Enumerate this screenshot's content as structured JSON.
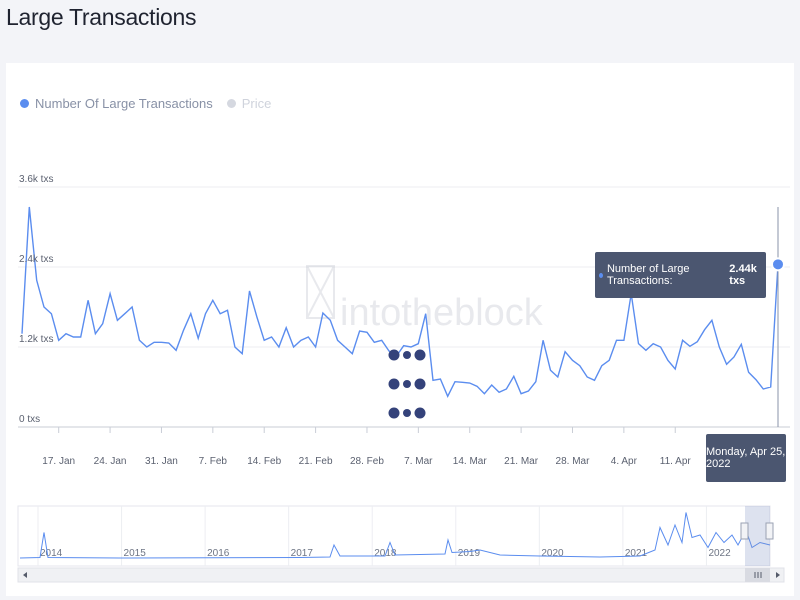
{
  "page": {
    "title": "Large Transactions"
  },
  "legend": {
    "items": [
      {
        "label": "Number Of Large Transactions",
        "color": "#5b8def",
        "active": true
      },
      {
        "label": "Price",
        "color": "#d5d8e0",
        "active": false
      }
    ]
  },
  "watermark": {
    "text": "intotheblock"
  },
  "tooltip": {
    "series_label": "Number of Large Transactions:",
    "value_label": "2.44k txs",
    "date_label": "Monday, Apr 25, 2022"
  },
  "chart_data": {
    "type": "line",
    "series": [
      {
        "name": "Number Of Large Transactions",
        "color": "#5b8def",
        "x": [
          "2022-01-12",
          "2022-01-13",
          "2022-01-14",
          "2022-01-15",
          "2022-01-16",
          "2022-01-17",
          "2022-01-18",
          "2022-01-19",
          "2022-01-20",
          "2022-01-21",
          "2022-01-22",
          "2022-01-23",
          "2022-01-24",
          "2022-01-25",
          "2022-01-26",
          "2022-01-27",
          "2022-01-28",
          "2022-01-29",
          "2022-01-30",
          "2022-01-31",
          "2022-02-01",
          "2022-02-02",
          "2022-02-03",
          "2022-02-04",
          "2022-02-05",
          "2022-02-06",
          "2022-02-07",
          "2022-02-08",
          "2022-02-09",
          "2022-02-10",
          "2022-02-11",
          "2022-02-12",
          "2022-02-13",
          "2022-02-14",
          "2022-02-15",
          "2022-02-16",
          "2022-02-17",
          "2022-02-18",
          "2022-02-19",
          "2022-02-20",
          "2022-02-21",
          "2022-02-22",
          "2022-02-23",
          "2022-02-24",
          "2022-02-25",
          "2022-02-26",
          "2022-02-27",
          "2022-02-28",
          "2022-03-01",
          "2022-03-02",
          "2022-03-03",
          "2022-03-04",
          "2022-03-05",
          "2022-03-06",
          "2022-03-07",
          "2022-03-08",
          "2022-03-09",
          "2022-03-10",
          "2022-03-11",
          "2022-03-12",
          "2022-03-13",
          "2022-03-14",
          "2022-03-15",
          "2022-03-16",
          "2022-03-17",
          "2022-03-18",
          "2022-03-19",
          "2022-03-20",
          "2022-03-21",
          "2022-03-22",
          "2022-03-23",
          "2022-03-24",
          "2022-03-25",
          "2022-03-26",
          "2022-03-27",
          "2022-03-28",
          "2022-03-29",
          "2022-03-30",
          "2022-03-31",
          "2022-04-01",
          "2022-04-02",
          "2022-04-03",
          "2022-04-04",
          "2022-04-05",
          "2022-04-06",
          "2022-04-07",
          "2022-04-08",
          "2022-04-09",
          "2022-04-10",
          "2022-04-11",
          "2022-04-12",
          "2022-04-13",
          "2022-04-14",
          "2022-04-15",
          "2022-04-16",
          "2022-04-17",
          "2022-04-18",
          "2022-04-19",
          "2022-04-20",
          "2022-04-21",
          "2022-04-22",
          "2022-04-23",
          "2022-04-24",
          "2022-04-25"
        ],
        "values": [
          1400,
          3300,
          2200,
          1800,
          1700,
          1300,
          1400,
          1350,
          1350,
          1900,
          1400,
          1550,
          2000,
          1600,
          1700,
          1800,
          1300,
          1200,
          1270,
          1270,
          1260,
          1150,
          1450,
          1700,
          1330,
          1700,
          1900,
          1700,
          1750,
          1200,
          1100,
          2040,
          1650,
          1300,
          1350,
          1200,
          1490,
          1200,
          1300,
          1350,
          1200,
          1710,
          1600,
          1300,
          1200,
          1100,
          1440,
          1420,
          1270,
          1300,
          1140,
          1060,
          1220,
          1200,
          1250,
          1700,
          700,
          720,
          460,
          680,
          670,
          660,
          610,
          500,
          630,
          520,
          570,
          760,
          500,
          540,
          680,
          1300,
          850,
          750,
          1130,
          1000,
          920,
          750,
          700,
          920,
          1000,
          1300,
          1300,
          2000,
          1250,
          1150,
          1250,
          1200,
          1000,
          870,
          1300,
          1210,
          1280,
          1460,
          1600,
          1200,
          940,
          1050,
          1240,
          820,
          710,
          570,
          600,
          2440
        ]
      }
    ],
    "x_ticks": [
      "17. Jan",
      "24. Jan",
      "31. Jan",
      "7. Feb",
      "14. Feb",
      "21. Feb",
      "28. Feb",
      "7. Mar",
      "14. Mar",
      "21. Mar",
      "28. Mar",
      "4. Apr",
      "11. Apr"
    ],
    "y_ticks": [
      "0 txs",
      "1.2k txs",
      "2.4k txs",
      "3.6k txs"
    ],
    "ylim": [
      0,
      3600
    ],
    "grid": "horizontal",
    "legend_position": "top-left",
    "navigator": {
      "years": [
        "2014",
        "2015",
        "2016",
        "2017",
        "2018",
        "2019",
        "2020",
        "2021",
        "2022"
      ],
      "selected_range": "last ~3.5 months"
    }
  }
}
